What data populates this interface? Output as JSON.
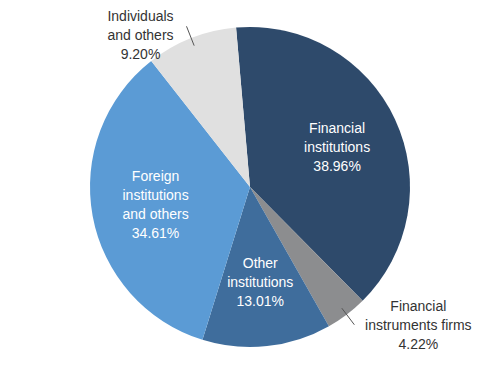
{
  "chart_data": {
    "type": "pie",
    "categories": [
      "Financial institutions",
      "Financial instruments firms",
      "Other institutions",
      "Foreign institutions and others",
      "Individuals and others"
    ],
    "values": [
      38.96,
      4.22,
      13.01,
      34.61,
      9.2
    ],
    "value_labels": [
      "38.96%",
      "4.22%",
      "13.01%",
      "34.61%",
      "9.20%"
    ],
    "colors": [
      "#2e4a6b",
      "#8c8d8f",
      "#3f6d9c",
      "#5b9bd5",
      "#e0e0e0"
    ],
    "data_labels": true
  }
}
